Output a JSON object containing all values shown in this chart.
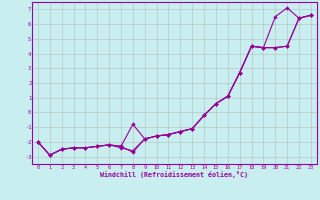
{
  "xlabel": "Windchill (Refroidissement éolien,°C)",
  "bg_color": "#c8eef0",
  "line_color": "#990099",
  "grid_color": "#b0b0b0",
  "x_values": [
    0,
    1,
    2,
    3,
    4,
    5,
    6,
    7,
    8,
    9,
    10,
    11,
    12,
    13,
    14,
    15,
    16,
    17,
    18,
    19,
    20,
    21,
    22,
    23
  ],
  "line1": [
    -2.0,
    -2.9,
    -2.5,
    -2.4,
    -2.4,
    -2.3,
    -2.2,
    -2.3,
    -0.8,
    -1.8,
    -1.6,
    -1.5,
    -1.3,
    -1.1,
    -0.2,
    0.6,
    1.1,
    2.7,
    4.5,
    4.4,
    6.5,
    7.1,
    6.4,
    6.6
  ],
  "line2": [
    -2.0,
    -2.9,
    -2.5,
    -2.4,
    -2.4,
    -2.3,
    -2.2,
    -2.4,
    -2.6,
    -1.8,
    -1.6,
    -1.5,
    -1.3,
    -1.1,
    -0.2,
    0.6,
    1.1,
    2.7,
    4.5,
    4.4,
    4.4,
    4.5,
    6.4,
    6.6
  ],
  "line3": [
    -2.0,
    -2.9,
    -2.5,
    -2.4,
    -2.4,
    -2.3,
    -2.2,
    -2.3,
    -2.7,
    -1.8,
    -1.6,
    -1.5,
    -1.3,
    -1.1,
    -0.2,
    0.6,
    1.1,
    2.7,
    4.5,
    4.4,
    4.4,
    4.5,
    6.4,
    6.6
  ],
  "ylim": [
    -3.5,
    7.5
  ],
  "xlim": [
    -0.5,
    23.5
  ],
  "yticks": [
    -3,
    -2,
    -1,
    0,
    1,
    2,
    3,
    4,
    5,
    6,
    7
  ],
  "xticks": [
    0,
    1,
    2,
    3,
    4,
    5,
    6,
    7,
    8,
    9,
    10,
    11,
    12,
    13,
    14,
    15,
    16,
    17,
    18,
    19,
    20,
    21,
    22,
    23
  ]
}
